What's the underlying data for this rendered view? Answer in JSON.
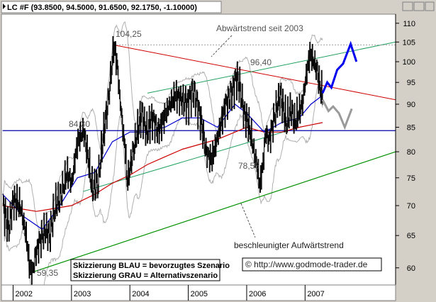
{
  "header": {
    "title": "LC #F (93.8500, 94.5000, 91.6500, 92.1750, -1.10000)"
  },
  "colors": {
    "background": "#d4d0c8",
    "plot": "#ffffff",
    "price": "#000000",
    "ma_short": "#0000cc",
    "ma_long": "#cc0000",
    "bands": "#b0b0b0",
    "trend_down": "#d00000",
    "channel_upper": "#20a060",
    "trend_up": "#009000",
    "support": "#0000aa",
    "scenario_blue": "#0000ee",
    "scenario_gray": "#9a9a9a"
  },
  "annotations": {
    "peak_label": "104,25",
    "downtrend_label": "Abwärtstrend seit 2003",
    "level_8430": "84,30",
    "level_9640": "96,40",
    "level_7855": "78,55",
    "uptrend_label": "beschleunigter Aufwärtstrend",
    "low_label": "59,35",
    "legend_blue": "Skizzierung BLAU = bevorzugtes Szenario",
    "legend_gray": "Skizzierung GRAU = Alternativszenario",
    "copyright": "© http://www.godmode-trader.de"
  },
  "chart_data": {
    "type": "line",
    "title": "LC #F (93.8500, 94.5000, 91.6500, 92.1750, -1.10000)",
    "xlabel": "",
    "ylabel": "",
    "xlim": [
      2001.8,
      2008.55
    ],
    "ylim": [
      57.5,
      112.5
    ],
    "y_scale": "log",
    "x_ticks": [
      "2002",
      "2003",
      "2004",
      "2005",
      "2006",
      "2007"
    ],
    "x_tick_values": [
      2002,
      2003,
      2004,
      2005,
      2006,
      2007
    ],
    "y_ticks": [
      60,
      65,
      70,
      75,
      80,
      85,
      90,
      95,
      100,
      105,
      110
    ],
    "grid": false,
    "price_anchors": [
      [
        2001.82,
        70
      ],
      [
        2001.92,
        66
      ],
      [
        2002.0,
        71
      ],
      [
        2002.12,
        70
      ],
      [
        2002.22,
        65
      ],
      [
        2002.28,
        60
      ],
      [
        2002.33,
        59.35
      ],
      [
        2002.38,
        62
      ],
      [
        2002.45,
        64
      ],
      [
        2002.55,
        66
      ],
      [
        2002.62,
        65
      ],
      [
        2002.72,
        70
      ],
      [
        2002.82,
        72
      ],
      [
        2002.92,
        76
      ],
      [
        2003.0,
        74
      ],
      [
        2003.1,
        82
      ],
      [
        2003.2,
        84.3
      ],
      [
        2003.28,
        79
      ],
      [
        2003.35,
        73
      ],
      [
        2003.45,
        74
      ],
      [
        2003.55,
        84
      ],
      [
        2003.62,
        90
      ],
      [
        2003.68,
        98
      ],
      [
        2003.72,
        104.25
      ],
      [
        2003.78,
        99
      ],
      [
        2003.82,
        92
      ],
      [
        2003.88,
        84
      ],
      [
        2003.92,
        80
      ],
      [
        2003.95,
        74
      ],
      [
        2004.0,
        77
      ],
      [
        2004.05,
        80
      ],
      [
        2004.12,
        84
      ],
      [
        2004.2,
        88
      ],
      [
        2004.28,
        84
      ],
      [
        2004.38,
        87
      ],
      [
        2004.48,
        84
      ],
      [
        2004.58,
        87
      ],
      [
        2004.68,
        90
      ],
      [
        2004.78,
        92
      ],
      [
        2004.88,
        91
      ],
      [
        2004.98,
        90
      ],
      [
        2005.08,
        93
      ],
      [
        2005.15,
        90
      ],
      [
        2005.22,
        86
      ],
      [
        2005.3,
        80
      ],
      [
        2005.35,
        79
      ],
      [
        2005.4,
        78.55
      ],
      [
        2005.48,
        82
      ],
      [
        2005.56,
        86
      ],
      [
        2005.64,
        90
      ],
      [
        2005.72,
        92
      ],
      [
        2005.78,
        94
      ],
      [
        2005.82,
        96.4
      ],
      [
        2005.88,
        94
      ],
      [
        2005.95,
        88
      ],
      [
        2006.02,
        86
      ],
      [
        2006.08,
        83
      ],
      [
        2006.12,
        80
      ],
      [
        2006.18,
        77
      ],
      [
        2006.22,
        73.5
      ],
      [
        2006.28,
        78
      ],
      [
        2006.32,
        84
      ],
      [
        2006.38,
        82
      ],
      [
        2006.45,
        86
      ],
      [
        2006.52,
        90
      ],
      [
        2006.58,
        92
      ],
      [
        2006.62,
        89
      ],
      [
        2006.68,
        86
      ],
      [
        2006.75,
        89
      ],
      [
        2006.82,
        86
      ],
      [
        2006.88,
        88
      ],
      [
        2006.95,
        90
      ],
      [
        2007.02,
        97
      ],
      [
        2007.08,
        102
      ],
      [
        2007.15,
        100
      ],
      [
        2007.2,
        98
      ],
      [
        2007.25,
        94
      ],
      [
        2007.3,
        92.18
      ]
    ],
    "series_ma_short": [
      [
        2001.82,
        72
      ],
      [
        2002.2,
        68
      ],
      [
        2002.5,
        66
      ],
      [
        2002.8,
        70
      ],
      [
        2003.1,
        75
      ],
      [
        2003.4,
        76
      ],
      [
        2003.7,
        82
      ],
      [
        2004.0,
        84
      ],
      [
        2004.3,
        84
      ],
      [
        2004.6,
        85
      ],
      [
        2004.9,
        87
      ],
      [
        2005.2,
        87
      ],
      [
        2005.5,
        85
      ],
      [
        2005.8,
        90
      ],
      [
        2006.0,
        88
      ],
      [
        2006.3,
        84
      ],
      [
        2006.6,
        86
      ],
      [
        2006.9,
        87
      ],
      [
        2007.1,
        90
      ],
      [
        2007.3,
        92
      ]
    ],
    "series_ma_long": [
      [
        2001.82,
        70
      ],
      [
        2002.1,
        69.5
      ],
      [
        2002.4,
        69
      ],
      [
        2002.7,
        69.5
      ],
      [
        2003.0,
        70
      ],
      [
        2003.4,
        72
      ],
      [
        2003.7,
        74
      ],
      [
        2004.0,
        75.5
      ],
      [
        2004.3,
        77.5
      ],
      [
        2004.6,
        79
      ],
      [
        2004.9,
        80.5
      ],
      [
        2005.2,
        81.5
      ],
      [
        2005.5,
        82.5
      ],
      [
        2005.8,
        84
      ],
      [
        2006.0,
        85
      ],
      [
        2006.3,
        84
      ],
      [
        2006.6,
        84
      ],
      [
        2006.9,
        85
      ],
      [
        2007.1,
        85.5
      ],
      [
        2007.3,
        86
      ]
    ],
    "trendlines": [
      {
        "name": "Abwärtstrend seit 2003",
        "points": [
          [
            2003.72,
            104.25
          ],
          [
            2008.55,
            91.0
          ]
        ]
      },
      {
        "name": "channel upper",
        "points": [
          [
            2004.3,
            92.5
          ],
          [
            2008.55,
            105.0
          ]
        ]
      },
      {
        "name": "channel lower",
        "points": [
          [
            2003.2,
            72.5
          ],
          [
            2006.9,
            85.0
          ]
        ]
      },
      {
        "name": "beschleunigter Aufwärtstrend",
        "points": [
          [
            2002.33,
            59.35
          ],
          [
            2008.55,
            80.0
          ]
        ]
      },
      {
        "name": "84,30",
        "points": [
          [
            2001.82,
            84.3
          ],
          [
            2008.55,
            84.3
          ]
        ]
      }
    ],
    "resistance_dotted": [
      [
        2003.72,
        104.25
      ],
      [
        2008.55,
        104.25
      ]
    ],
    "scenario_blue": [
      [
        2007.3,
        92.5
      ],
      [
        2007.38,
        95
      ],
      [
        2007.45,
        93.8
      ],
      [
        2007.55,
        98
      ],
      [
        2007.65,
        99.5
      ],
      [
        2007.78,
        104.5
      ],
      [
        2007.88,
        100
      ]
    ],
    "scenario_gray": [
      [
        2007.3,
        91
      ],
      [
        2007.4,
        88.5
      ],
      [
        2007.48,
        89.5
      ],
      [
        2007.58,
        88
      ],
      [
        2007.68,
        85
      ],
      [
        2007.8,
        89
      ]
    ]
  }
}
